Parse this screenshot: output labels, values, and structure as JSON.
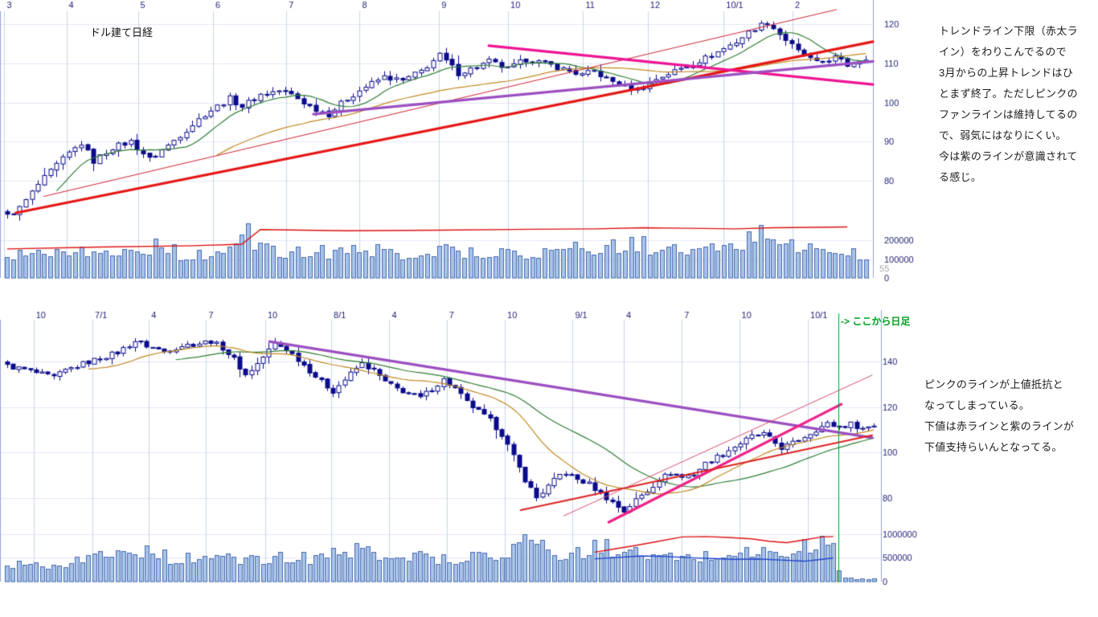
{
  "annotations": {
    "top": "トレンドライン下限（赤太ラ\nイン）をわりこんでるので\n3月からの上昇トレンドはひ\nとまず終了。ただしピンクの\nファンラインは維持してるの\nで、弱気にはなりにくい。\n今は紫のラインが意識されて\nる感じ。",
    "bottom": "ピンクのラインが上値抵抗と\nなってしまっている。\n下値は赤ラインと紫のラインが\n下値支持らいんとなってる。"
  },
  "style": {
    "grid_v": "#c9d3ea",
    "grid_h": "#e3e9f6",
    "border": "#98a4d8",
    "axis_text": "#232378"
  },
  "chart_data": [
    {
      "id": "weekly",
      "type": "candlestick",
      "title": "ドル建て日経",
      "extra_label": "55",
      "x_labels": [
        {
          "t": "3",
          "f": 0.005
        },
        {
          "t": "4",
          "f": 0.076
        },
        {
          "t": "5",
          "f": 0.158
        },
        {
          "t": "6",
          "f": 0.244
        },
        {
          "t": "7",
          "f": 0.328
        },
        {
          "t": "8",
          "f": 0.412
        },
        {
          "t": "9",
          "f": 0.503
        },
        {
          "t": "10",
          "f": 0.582
        },
        {
          "t": "11",
          "f": 0.668
        },
        {
          "t": "12",
          "f": 0.742
        },
        {
          "t": "10/1",
          "f": 0.829
        },
        {
          "t": "2",
          "f": 0.908
        }
      ],
      "y_ticks": [
        120,
        110,
        100,
        90,
        80
      ],
      "volume_ticks": [
        200000,
        100000,
        0
      ],
      "volume_max": 300000,
      "bars": 140,
      "noise": 0.7,
      "candle_color": "#0a0a8c",
      "volume_bar_fill": "#a8c4e6",
      "volume_bar_stroke": "#4468b0",
      "close_keypoints": [
        [
          0,
          71
        ],
        [
          2,
          73
        ],
        [
          5,
          79
        ],
        [
          8,
          84
        ],
        [
          10,
          87
        ],
        [
          12,
          89.5
        ],
        [
          14,
          85
        ],
        [
          17,
          88.5
        ],
        [
          20,
          90
        ],
        [
          23,
          85.5
        ],
        [
          26,
          89
        ],
        [
          29,
          93
        ],
        [
          32,
          97
        ],
        [
          34,
          99
        ],
        [
          36,
          101
        ],
        [
          38,
          99
        ],
        [
          41,
          102
        ],
        [
          44,
          103
        ],
        [
          46,
          102
        ],
        [
          49,
          99
        ],
        [
          52,
          97
        ],
        [
          55,
          101
        ],
        [
          58,
          104
        ],
        [
          61,
          106.5
        ],
        [
          64,
          105.5
        ],
        [
          67,
          108
        ],
        [
          70,
          112
        ],
        [
          73,
          107.5
        ],
        [
          76,
          109
        ],
        [
          78,
          110.5
        ],
        [
          81,
          108.5
        ],
        [
          84,
          111
        ],
        [
          87,
          110
        ],
        [
          90,
          108.5
        ],
        [
          93,
          107
        ],
        [
          95,
          108
        ],
        [
          97,
          106
        ],
        [
          100,
          104
        ],
        [
          102,
          103.2
        ],
        [
          105,
          106
        ],
        [
          108,
          108
        ],
        [
          111,
          110
        ],
        [
          114,
          112
        ],
        [
          118,
          115.5
        ],
        [
          121,
          119
        ],
        [
          123,
          120.5
        ],
        [
          126,
          116
        ],
        [
          128,
          113
        ],
        [
          131,
          110
        ],
        [
          134,
          111.5
        ],
        [
          136,
          109.5
        ],
        [
          138,
          111
        ],
        [
          139,
          111.5
        ]
      ],
      "volume_keypoints": [
        [
          0,
          130
        ],
        [
          5,
          150
        ],
        [
          10,
          160
        ],
        [
          15,
          120
        ],
        [
          20,
          145
        ],
        [
          24,
          170
        ],
        [
          28,
          130
        ],
        [
          32,
          120
        ],
        [
          36,
          145
        ],
        [
          39,
          200
        ],
        [
          42,
          150
        ],
        [
          46,
          130
        ],
        [
          50,
          140
        ],
        [
          55,
          150
        ],
        [
          60,
          140
        ],
        [
          65,
          130
        ],
        [
          70,
          150
        ],
        [
          75,
          140
        ],
        [
          80,
          130
        ],
        [
          85,
          140
        ],
        [
          90,
          150
        ],
        [
          95,
          160
        ],
        [
          100,
          170
        ],
        [
          103,
          180
        ],
        [
          106,
          150
        ],
        [
          110,
          140
        ],
        [
          114,
          150
        ],
        [
          118,
          165
        ],
        [
          122,
          250
        ],
        [
          125,
          200
        ],
        [
          128,
          170
        ],
        [
          131,
          150
        ],
        [
          134,
          140
        ],
        [
          137,
          130
        ],
        [
          139,
          115
        ]
      ],
      "volume_spikes": [
        [
          39,
          290
        ],
        [
          122,
          283
        ]
      ],
      "ma_lines": [
        {
          "period": 9,
          "color": "#2f7d32",
          "width": 1.2
        },
        {
          "period": 35,
          "color": "#c08820",
          "width": 1.2
        }
      ],
      "volume_ma_lines": [
        {
          "color": "#dd1111",
          "width": 1.4,
          "points": [
            [
              0,
              155
            ],
            [
              15,
              165
            ],
            [
              30,
              172
            ],
            [
              38,
              180
            ],
            [
              41,
              258
            ],
            [
              55,
              252
            ],
            [
              70,
              255
            ],
            [
              85,
              260
            ],
            [
              95,
              262
            ],
            [
              103,
              268
            ],
            [
              110,
              265
            ],
            [
              118,
              262
            ],
            [
              124,
              268
            ],
            [
              130,
              270
            ],
            [
              136,
              272
            ]
          ]
        }
      ],
      "trend_lines": [
        {
          "name": "thick-red-uptrend",
          "x1": 0.018,
          "p1": 71.8,
          "x2": 1.0,
          "p2": 115.5,
          "color": "#e51616",
          "width": 3.2
        },
        {
          "name": "thin-red-uptrend",
          "x1": 0.05,
          "p1": 76,
          "x2": 0.958,
          "p2": 123.7,
          "color": "#cc2233",
          "width": 1
        },
        {
          "name": "pink-fan-line",
          "x1": 0.56,
          "p1": 114.5,
          "x2": 1.0,
          "p2": 104.6,
          "color": "#ee1493",
          "width": 3.2
        },
        {
          "name": "purple-line",
          "x1": 0.359,
          "p1": 97,
          "x2": 1.0,
          "p2": 110.5,
          "color": "#9b4fc0",
          "width": 3.2
        }
      ]
    },
    {
      "id": "daily",
      "type": "candlestick",
      "title": "",
      "divider_label": "-> ここから日足",
      "divider_fraction": 0.9516,
      "divider_color": "#00a020",
      "x_labels": [
        {
          "t": "10",
          "f": 0.038
        },
        {
          "t": "7/1",
          "f": 0.105
        },
        {
          "t": "4",
          "f": 0.169
        },
        {
          "t": "7",
          "f": 0.234
        },
        {
          "t": "10",
          "f": 0.301
        },
        {
          "t": "8/1",
          "f": 0.376
        },
        {
          "t": "4",
          "f": 0.442
        },
        {
          "t": "7",
          "f": 0.507
        },
        {
          "t": "10",
          "f": 0.573
        },
        {
          "t": "9/1",
          "f": 0.65
        },
        {
          "t": "4",
          "f": 0.708
        },
        {
          "t": "7",
          "f": 0.774
        },
        {
          "t": "10",
          "f": 0.839
        },
        {
          "t": "10/1",
          "f": 0.917
        }
      ],
      "y_ticks": [
        140,
        120,
        100,
        80
      ],
      "volume_ticks": [
        1000000,
        500000,
        0
      ],
      "volume_max": 1150000,
      "bars": 150,
      "noise": 1.1,
      "candle_color": "#0a0a8c",
      "volume_bar_fill": "#a8c4e6",
      "volume_bar_stroke": "#4468b0",
      "close_keypoints": [
        [
          0,
          138
        ],
        [
          3,
          136.5
        ],
        [
          5,
          135
        ],
        [
          8,
          133
        ],
        [
          10,
          136
        ],
        [
          13,
          139
        ],
        [
          16,
          141.5
        ],
        [
          19,
          144
        ],
        [
          22,
          149
        ],
        [
          24,
          147
        ],
        [
          27,
          144.5
        ],
        [
          30,
          147
        ],
        [
          33,
          148
        ],
        [
          35,
          149
        ],
        [
          37,
          146
        ],
        [
          39,
          141
        ],
        [
          41,
          134
        ],
        [
          43,
          139
        ],
        [
          46,
          148
        ],
        [
          48,
          145.5
        ],
        [
          50,
          141
        ],
        [
          52,
          136
        ],
        [
          54,
          131
        ],
        [
          56,
          127
        ],
        [
          58,
          132
        ],
        [
          60,
          137
        ],
        [
          61,
          139
        ],
        [
          63,
          136
        ],
        [
          65,
          131
        ],
        [
          67,
          128
        ],
        [
          69,
          126
        ],
        [
          71,
          124
        ],
        [
          73,
          128
        ],
        [
          75,
          132
        ],
        [
          77,
          128
        ],
        [
          79,
          122
        ],
        [
          81,
          118
        ],
        [
          83,
          114
        ],
        [
          85,
          108
        ],
        [
          87,
          98
        ],
        [
          89,
          88
        ],
        [
          91,
          80
        ],
        [
          93,
          85
        ],
        [
          95,
          90
        ],
        [
          96,
          91
        ],
        [
          98,
          88
        ],
        [
          100,
          86
        ],
        [
          102,
          82
        ],
        [
          104,
          78
        ],
        [
          106,
          74
        ],
        [
          108,
          79
        ],
        [
          110,
          83
        ],
        [
          112,
          88
        ],
        [
          114,
          91
        ],
        [
          116,
          89
        ],
        [
          118,
          90.5
        ],
        [
          120,
          95
        ],
        [
          122,
          98
        ],
        [
          124,
          101
        ],
        [
          126,
          104
        ],
        [
          128,
          107
        ],
        [
          130,
          108
        ],
        [
          131,
          106
        ],
        [
          133,
          102
        ],
        [
          135,
          104
        ],
        [
          137,
          107
        ],
        [
          139,
          110
        ],
        [
          141,
          112.5
        ],
        [
          143,
          111
        ],
        [
          145,
          112.5
        ],
        [
          147,
          110.5
        ],
        [
          149,
          112
        ]
      ],
      "volume_keypoints": [
        [
          0,
          380
        ],
        [
          4,
          420
        ],
        [
          8,
          350
        ],
        [
          12,
          450
        ],
        [
          16,
          550
        ],
        [
          20,
          620
        ],
        [
          22,
          700
        ],
        [
          26,
          550
        ],
        [
          30,
          480
        ],
        [
          34,
          520
        ],
        [
          38,
          470
        ],
        [
          42,
          450
        ],
        [
          46,
          500
        ],
        [
          50,
          480
        ],
        [
          54,
          550
        ],
        [
          58,
          620
        ],
        [
          62,
          650
        ],
        [
          66,
          600
        ],
        [
          70,
          540
        ],
        [
          74,
          500
        ],
        [
          78,
          480
        ],
        [
          82,
          560
        ],
        [
          86,
          660
        ],
        [
          88,
          800
        ],
        [
          90,
          850
        ],
        [
          92,
          700
        ],
        [
          94,
          620
        ],
        [
          97,
          560
        ],
        [
          100,
          650
        ],
        [
          102,
          750
        ],
        [
          104,
          700
        ],
        [
          107,
          600
        ],
        [
          110,
          550
        ],
        [
          113,
          500
        ],
        [
          116,
          480
        ],
        [
          119,
          520
        ],
        [
          122,
          560
        ],
        [
          125,
          600
        ],
        [
          128,
          650
        ],
        [
          131,
          600
        ],
        [
          134,
          560
        ],
        [
          136,
          700
        ],
        [
          138,
          760
        ],
        [
          140,
          800
        ],
        [
          142,
          740
        ],
        [
          143,
          300
        ],
        [
          144,
          80
        ],
        [
          147,
          65
        ],
        [
          149,
          55
        ]
      ],
      "volume_spikes": [
        [
          89,
          1000
        ]
      ],
      "ma_lines": [
        {
          "period": 30,
          "color": "#2f7d32",
          "width": 1.2
        },
        {
          "period": 15,
          "color": "#c08820",
          "width": 1.2
        }
      ],
      "volume_ma_lines": [
        {
          "color": "#dd1111",
          "width": 1.4,
          "points": [
            [
              101,
              620
            ],
            [
              104,
              680
            ],
            [
              108,
              760
            ],
            [
              112,
              850
            ],
            [
              116,
              940
            ],
            [
              120,
              950
            ],
            [
              124,
              930
            ],
            [
              128,
              900
            ],
            [
              131,
              850
            ],
            [
              134,
              820
            ],
            [
              137,
              880
            ],
            [
              140,
              940
            ],
            [
              142,
              950
            ]
          ]
        },
        {
          "color": "#2244cc",
          "width": 1.4,
          "points": [
            [
              101,
              480
            ],
            [
              105,
              510
            ],
            [
              109,
              540
            ],
            [
              113,
              530
            ],
            [
              117,
              505
            ],
            [
              121,
              485
            ],
            [
              125,
              470
            ],
            [
              129,
              478
            ],
            [
              133,
              455
            ],
            [
              137,
              430
            ],
            [
              140,
              470
            ],
            [
              142,
              500
            ]
          ]
        }
      ],
      "trend_lines": [
        {
          "name": "purple-line",
          "x1": 0.306,
          "p1": 148.8,
          "x2": 0.99,
          "p2": 106.4,
          "color": "#9b4fc0",
          "width": 3.2
        },
        {
          "name": "pink-line",
          "x1": 0.691,
          "p1": 69.2,
          "x2": 0.955,
          "p2": 121.2,
          "color": "#ee2288",
          "width": 3.2
        },
        {
          "name": "red-support-line",
          "x1": 0.591,
          "p1": 74.5,
          "x2": 0.99,
          "p2": 107.5,
          "color": "#dd2222",
          "width": 2
        },
        {
          "name": "thin-pink-line",
          "x1": 0.64,
          "p1": 72,
          "x2": 0.99,
          "p2": 134,
          "color": "#d94b6b",
          "width": 1
        }
      ]
    }
  ]
}
